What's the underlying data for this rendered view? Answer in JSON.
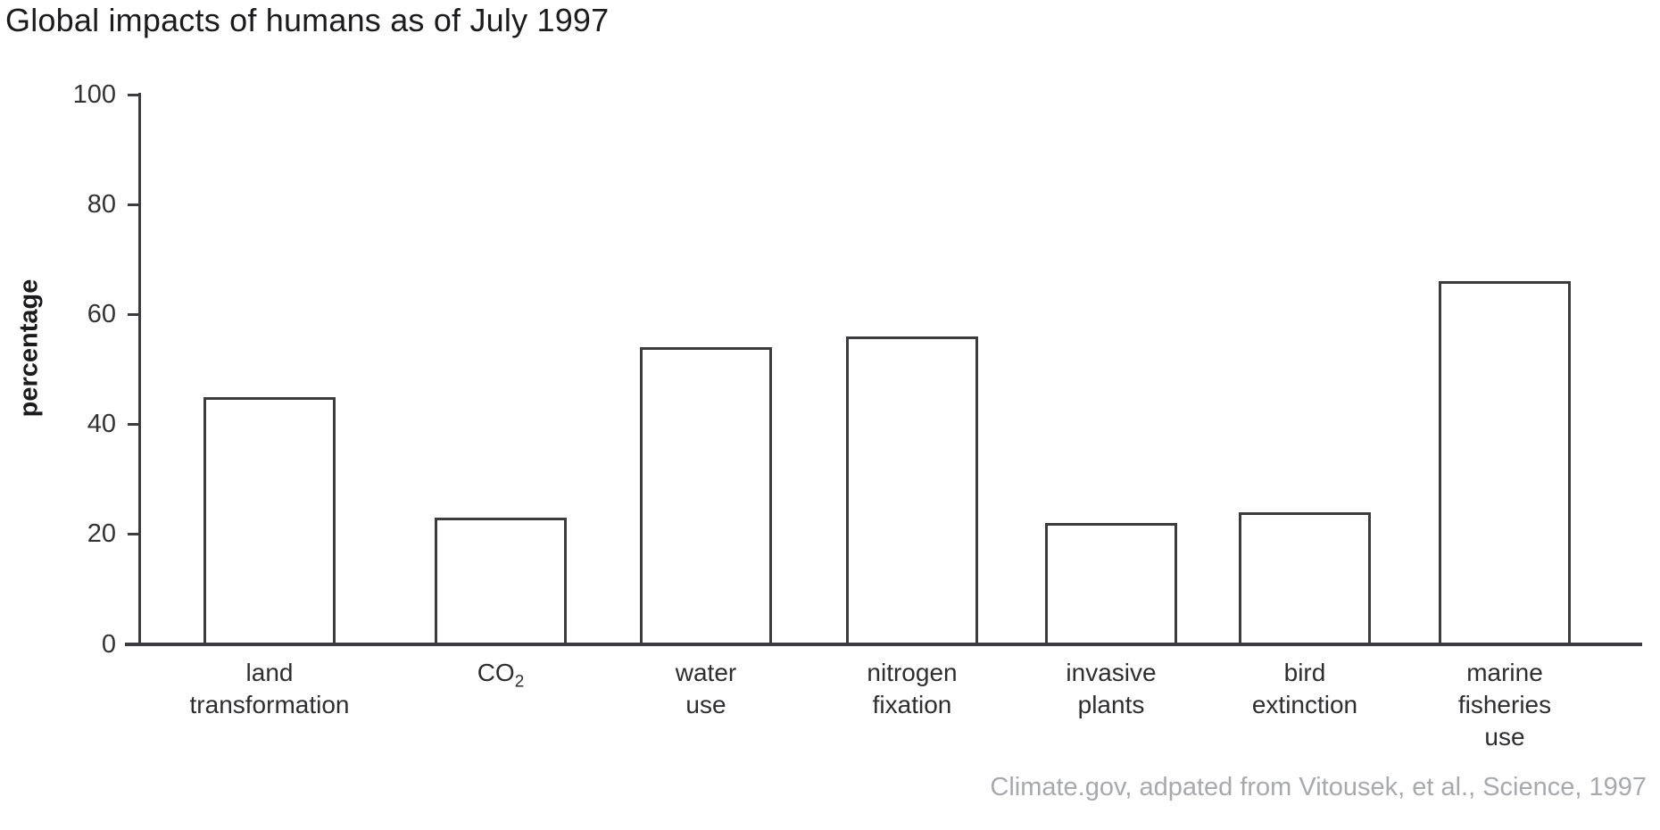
{
  "title": "Global impacts of humans as of July 1997",
  "attribution": "Climate.gov, adpated from Vitousek, et al., Science, 1997",
  "colors": {
    "axis": "#3c3c3e",
    "bar_fill": "#ffffff",
    "bar_border": "#3c3c3e",
    "title_text": "#1b1b1d",
    "attribution_text": "#a7a9ac"
  },
  "chart_data": {
    "type": "bar",
    "title": "Global impacts of humans as of July 1997",
    "xlabel": "",
    "ylabel": "percentage",
    "ylim": [
      0,
      100
    ],
    "yticks": [
      0,
      20,
      40,
      60,
      80,
      100
    ],
    "grid": false,
    "legend": false,
    "categories": [
      "land transformation",
      "CO₂",
      "water use",
      "nitrogen fixation",
      "invasive plants",
      "bird extinction",
      "marine fisheries use"
    ],
    "category_lines": [
      [
        "land",
        "transformation"
      ],
      [
        "CO₂"
      ],
      [
        "water",
        "use"
      ],
      [
        "nitrogen",
        "fixation"
      ],
      [
        "invasive",
        "plants"
      ],
      [
        "bird",
        "extinction"
      ],
      [
        "marine",
        "fisheries",
        "use"
      ]
    ],
    "values": [
      45,
      23,
      54,
      56,
      22,
      24,
      66
    ]
  }
}
